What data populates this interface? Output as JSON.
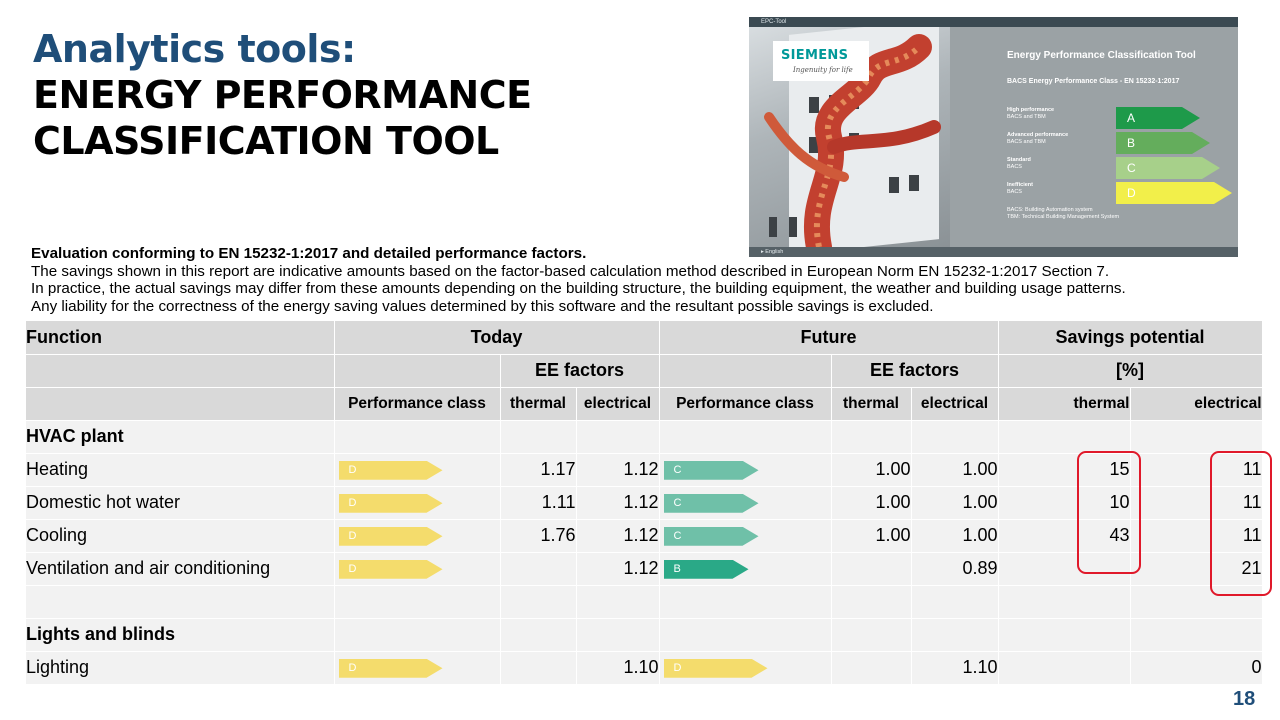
{
  "title": {
    "line1": "Analytics tools:",
    "line2": "ENERGY PERFORMANCE",
    "line3": "CLASSIFICATION TOOL"
  },
  "tool_window": {
    "window_title": "EPC-Tool",
    "logo": {
      "name": "SIEMENS",
      "tagline": "Ingenuity for life"
    },
    "heading": "Energy Performance Classification Tool",
    "subheading": "BACS Energy Performance Class - EN 15232-1:2017",
    "classes": [
      {
        "name": "High performance",
        "desc": "BACS and TBM",
        "letter": "A",
        "color": "#1e9a4a"
      },
      {
        "name": "Advanced performance",
        "desc": "BACS and TBM",
        "letter": "B",
        "color": "#64ad5c"
      },
      {
        "name": "Standard",
        "desc": "BACS",
        "letter": "C",
        "color": "#a7d08a"
      },
      {
        "name": "Inefficient",
        "desc": "BACS",
        "letter": "D",
        "color": "#f2ef4a"
      }
    ],
    "note_line1": "BACS: Building Automation system",
    "note_line2": "TBM: Technical Building Management System",
    "footer": "▸ English"
  },
  "evaluation": {
    "heading": "Evaluation conforming to EN 15232-1:2017 and detailed performance factors.",
    "lines": [
      "The savings shown in this report are indicative amounts based on the factor-based calculation method described in European Norm EN 15232-1:2017 Section 7.",
      "In practice, the actual savings may differ from these amounts depending on the building structure, the building equipment, the weather and building usage patterns.",
      "Any liability for the correctness of the energy saving values determined by this software and the resultant possible savings is excluded."
    ]
  },
  "table": {
    "header": {
      "function": "Function",
      "today": "Today",
      "future": "Future",
      "savings": "Savings potential",
      "ee_factors": "EE factors",
      "percent": "[%]",
      "performance_class": "Performance class",
      "thermal": "thermal",
      "electrical": "electrical"
    },
    "rows": [
      {
        "type": "section",
        "label": "HVAC plant"
      },
      {
        "type": "data",
        "label": "Heating",
        "today_class": "D",
        "today_thermal": "1.17",
        "today_electrical": "1.12",
        "future_class": "C",
        "future_thermal": "1.00",
        "future_electrical": "1.00",
        "savings_thermal": "15",
        "savings_electrical": "11"
      },
      {
        "type": "data",
        "label": "Domestic hot water",
        "today_class": "D",
        "today_thermal": "1.11",
        "today_electrical": "1.12",
        "future_class": "C",
        "future_thermal": "1.00",
        "future_electrical": "1.00",
        "savings_thermal": "10",
        "savings_electrical": "11"
      },
      {
        "type": "data",
        "label": "Cooling",
        "today_class": "D",
        "today_thermal": "1.76",
        "today_electrical": "1.12",
        "future_class": "C",
        "future_thermal": "1.00",
        "future_electrical": "1.00",
        "savings_thermal": "43",
        "savings_electrical": "11"
      },
      {
        "type": "data",
        "label": "Ventilation and air conditioning",
        "today_class": "D",
        "today_thermal": "",
        "today_electrical": "1.12",
        "future_class": "B",
        "future_thermal": "",
        "future_electrical": "0.89",
        "savings_thermal": "",
        "savings_electrical": "21"
      },
      {
        "type": "blank"
      },
      {
        "type": "section",
        "label": "Lights and blinds"
      },
      {
        "type": "data",
        "label": "Lighting",
        "today_class": "D",
        "today_thermal": "",
        "today_electrical": "1.10",
        "future_class": "D",
        "future_thermal": "",
        "future_electrical": "1.10",
        "savings_thermal": "",
        "savings_electrical": "0"
      }
    ]
  },
  "highlight_color": "#e0192a",
  "page_number": "18"
}
